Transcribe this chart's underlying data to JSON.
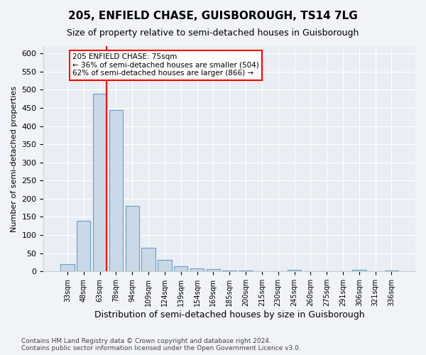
{
  "title": "205, ENFIELD CHASE, GUISBOROUGH, TS14 7LG",
  "subtitle": "Size of property relative to semi-detached houses in Guisborough",
  "xlabel": "Distribution of semi-detached houses by size in Guisborough",
  "ylabel": "Number of semi-detached properties",
  "bins": [
    "33sqm",
    "48sqm",
    "63sqm",
    "78sqm",
    "94sqm",
    "109sqm",
    "124sqm",
    "139sqm",
    "154sqm",
    "169sqm",
    "185sqm",
    "200sqm",
    "215sqm",
    "230sqm",
    "245sqm",
    "260sqm",
    "275sqm",
    "291sqm",
    "306sqm",
    "321sqm",
    "336sqm"
  ],
  "values": [
    20,
    140,
    490,
    445,
    180,
    65,
    32,
    14,
    8,
    7,
    3,
    2,
    1,
    0,
    4,
    1,
    0,
    0,
    4,
    0,
    3
  ],
  "bar_color": "#c9d9e8",
  "bar_edge_color": "#6a9fc0",
  "vline_x_index": 2,
  "vline_color": "red",
  "annotation_text": "205 ENFIELD CHASE: 75sqm\n← 36% of semi-detached houses are smaller (504)\n62% of semi-detached houses are larger (866) →",
  "annotation_box_color": "white",
  "annotation_box_edge_color": "red",
  "ylim": [
    0,
    620
  ],
  "yticks": [
    0,
    50,
    100,
    150,
    200,
    250,
    300,
    350,
    400,
    450,
    500,
    550,
    600
  ],
  "footer": "Contains HM Land Registry data © Crown copyright and database right 2024.\nContains public sector information licensed under the Open Government Licence v3.0.",
  "bg_color": "#f0f4f8",
  "plot_bg_color": "#e8eef4"
}
